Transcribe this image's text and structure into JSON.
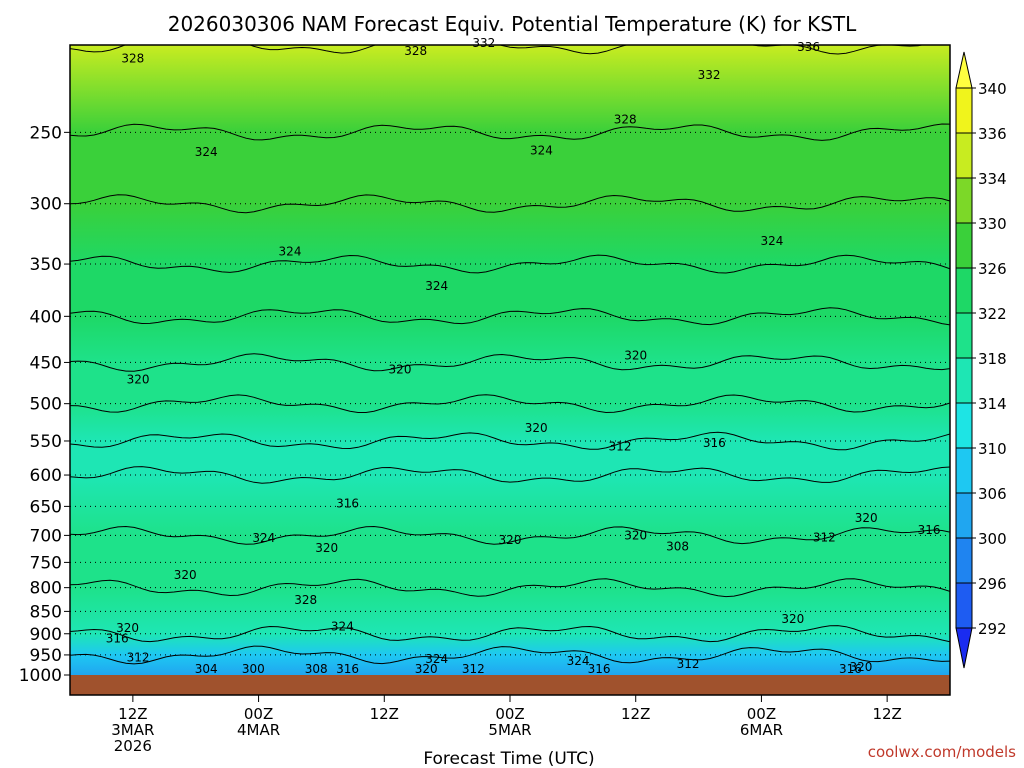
{
  "chart_data": {
    "type": "heatmap",
    "title": "2026030306 NAM Forecast Equiv. Potential Temperature (K) for KSTL",
    "xlabel": "Forecast Time (UTC)",
    "ylabel": "",
    "y_log_pressure": true,
    "ylim": [
      1000,
      200
    ],
    "y_ticks": [
      250,
      300,
      350,
      400,
      450,
      500,
      550,
      600,
      650,
      700,
      750,
      800,
      850,
      900,
      950,
      1000
    ],
    "x_range_hours": [
      0,
      84
    ],
    "x_ticks": [
      {
        "hour": 6,
        "lines": [
          "12Z",
          "3MAR",
          "2026"
        ]
      },
      {
        "hour": 18,
        "lines": [
          "00Z",
          "4MAR"
        ]
      },
      {
        "hour": 30,
        "lines": [
          "12Z"
        ]
      },
      {
        "hour": 42,
        "lines": [
          "00Z",
          "5MAR"
        ]
      },
      {
        "hour": 54,
        "lines": [
          "12Z"
        ]
      },
      {
        "hour": 66,
        "lines": [
          "00Z",
          "6MAR"
        ]
      },
      {
        "hour": 78,
        "lines": [
          "12Z"
        ]
      }
    ],
    "colorbar": {
      "levels": [
        292,
        296,
        300,
        306,
        310,
        314,
        318,
        322,
        326,
        330,
        334,
        336,
        340
      ],
      "colors": [
        "#1a2cf0",
        "#1e5cf2",
        "#1f84f0",
        "#20a6f0",
        "#1ec8f2",
        "#1ee4e4",
        "#1ee6b4",
        "#1ee28a",
        "#1ed866",
        "#3ad03a",
        "#7cd828",
        "#c8ec20",
        "#f0f41c",
        "#ffff40"
      ]
    },
    "profile_theta_e": [
      {
        "p": 200,
        "v": 334
      },
      {
        "p": 250,
        "v": 328
      },
      {
        "p": 300,
        "v": 326
      },
      {
        "p": 350,
        "v": 324
      },
      {
        "p": 400,
        "v": 322
      },
      {
        "p": 450,
        "v": 320
      },
      {
        "p": 500,
        "v": 318
      },
      {
        "p": 550,
        "v": 316
      },
      {
        "p": 600,
        "v": 316
      },
      {
        "p": 700,
        "v": 318
      },
      {
        "p": 800,
        "v": 318
      },
      {
        "p": 900,
        "v": 314
      },
      {
        "p": 950,
        "v": 306
      },
      {
        "p": 1000,
        "v": 300
      }
    ],
    "contour_labels": [
      {
        "hour": 6,
        "p": 207,
        "text": "328"
      },
      {
        "hour": 33,
        "p": 203,
        "text": "328"
      },
      {
        "hour": 39.5,
        "p": 199,
        "text": "332"
      },
      {
        "hour": 70.5,
        "p": 201,
        "text": "336"
      },
      {
        "hour": 61,
        "p": 216,
        "text": "332"
      },
      {
        "hour": 53,
        "p": 242,
        "text": "328"
      },
      {
        "hour": 13,
        "p": 263,
        "text": "324"
      },
      {
        "hour": 45,
        "p": 262,
        "text": "324"
      },
      {
        "hour": 21,
        "p": 339,
        "text": "324"
      },
      {
        "hour": 35,
        "p": 370,
        "text": "324"
      },
      {
        "hour": 67,
        "p": 330,
        "text": "324"
      },
      {
        "hour": 6.5,
        "p": 470,
        "text": "320"
      },
      {
        "hour": 31.5,
        "p": 458,
        "text": "320"
      },
      {
        "hour": 54,
        "p": 442,
        "text": "320"
      },
      {
        "hour": 44.5,
        "p": 532,
        "text": "320"
      },
      {
        "hour": 52.5,
        "p": 558,
        "text": "312"
      },
      {
        "hour": 61.5,
        "p": 553,
        "text": "316"
      },
      {
        "hour": 26.5,
        "p": 645,
        "text": "316"
      },
      {
        "hour": 18.5,
        "p": 705,
        "text": "324"
      },
      {
        "hour": 24.5,
        "p": 723,
        "text": "320"
      },
      {
        "hour": 11,
        "p": 775,
        "text": "320"
      },
      {
        "hour": 42,
        "p": 708,
        "text": "320"
      },
      {
        "hour": 54,
        "p": 700,
        "text": "320"
      },
      {
        "hour": 58,
        "p": 720,
        "text": "308"
      },
      {
        "hour": 72,
        "p": 704,
        "text": "312"
      },
      {
        "hour": 76,
        "p": 670,
        "text": "320"
      },
      {
        "hour": 82,
        "p": 690,
        "text": "316"
      },
      {
        "hour": 22.5,
        "p": 826,
        "text": "328"
      },
      {
        "hour": 26,
        "p": 883,
        "text": "324"
      },
      {
        "hour": 5.5,
        "p": 887,
        "text": "320"
      },
      {
        "hour": 4.5,
        "p": 911,
        "text": "316"
      },
      {
        "hour": 69,
        "p": 867,
        "text": "320"
      },
      {
        "hour": 6.5,
        "p": 956,
        "text": "312"
      },
      {
        "hour": 35,
        "p": 960,
        "text": "324"
      },
      {
        "hour": 48.5,
        "p": 965,
        "text": "324"
      },
      {
        "hour": 59,
        "p": 972,
        "text": "312"
      },
      {
        "hour": 13,
        "p": 994,
        "text": "304"
      },
      {
        "hour": 17.5,
        "p": 1010,
        "text": "300"
      },
      {
        "hour": 23.5,
        "p": 998,
        "text": "308"
      },
      {
        "hour": 26.5,
        "p": 996,
        "text": "316"
      },
      {
        "hour": 34,
        "p": 1003,
        "text": "320"
      },
      {
        "hour": 38.5,
        "p": 1008,
        "text": "312"
      },
      {
        "hour": 50.5,
        "p": 1010,
        "text": "316"
      },
      {
        "hour": 75.5,
        "p": 980,
        "text": "320"
      },
      {
        "hour": 74.5,
        "p": 1012,
        "text": "316"
      }
    ]
  },
  "credit": "coolwx.com/models"
}
